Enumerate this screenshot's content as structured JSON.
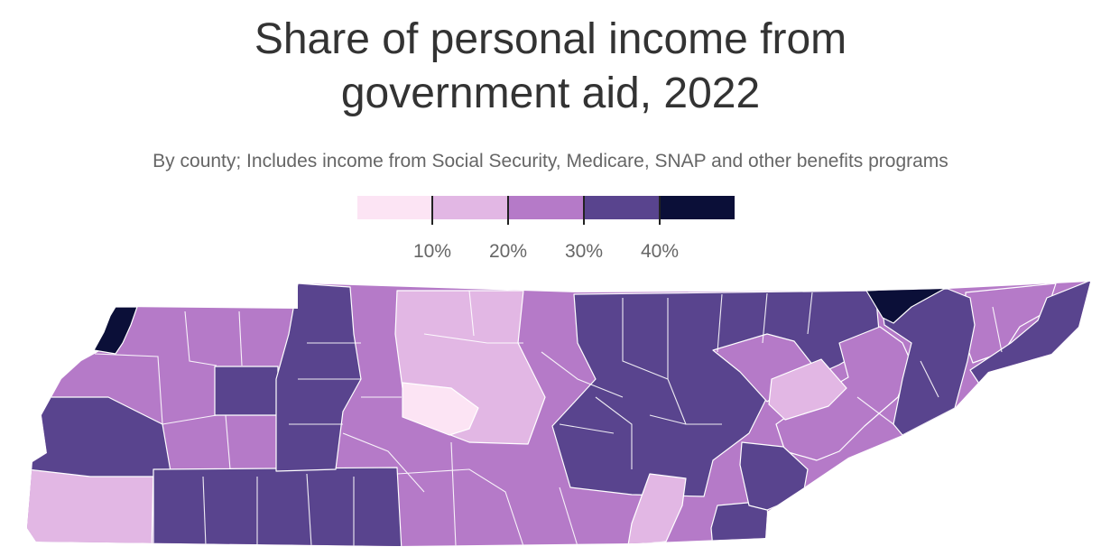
{
  "title": {
    "line1": "Share of personal income from",
    "line2": "government aid, 2022"
  },
  "subtitle": "By county; Includes income from Social Security, Medicare, SNAP and other benefits programs",
  "legend": {
    "bins": [
      {
        "color": "#fce4f4"
      },
      {
        "color": "#e2b7e4"
      },
      {
        "color": "#b57ac8"
      },
      {
        "color": "#59448e"
      },
      {
        "color": "#0b0f38"
      }
    ],
    "labels": [
      "10%",
      "20%",
      "30%",
      "40%"
    ]
  },
  "map": {
    "state": "Tennessee",
    "regions": [
      {
        "name": "lake-county",
        "bin": 4
      },
      {
        "name": "west-river-counties",
        "bin": 3
      },
      {
        "name": "southwest-counties",
        "bin": 1
      },
      {
        "name": "west-central-counties",
        "bin": 2
      },
      {
        "name": "west-south-counties",
        "bin": 3
      },
      {
        "name": "central-north-counties",
        "bin": 1
      },
      {
        "name": "davidson-area",
        "bin": 0
      },
      {
        "name": "middle-counties",
        "bin": 2
      },
      {
        "name": "plateau-counties",
        "bin": 3
      },
      {
        "name": "south-central-counties",
        "bin": 2
      },
      {
        "name": "hamilton-county",
        "bin": 1
      },
      {
        "name": "east-counties",
        "bin": 3
      },
      {
        "name": "knox-area",
        "bin": 1
      },
      {
        "name": "northeast-counties",
        "bin": 3
      },
      {
        "name": "far-northeast-county",
        "bin": 4
      },
      {
        "name": "east-purple-counties",
        "bin": 2
      }
    ]
  }
}
